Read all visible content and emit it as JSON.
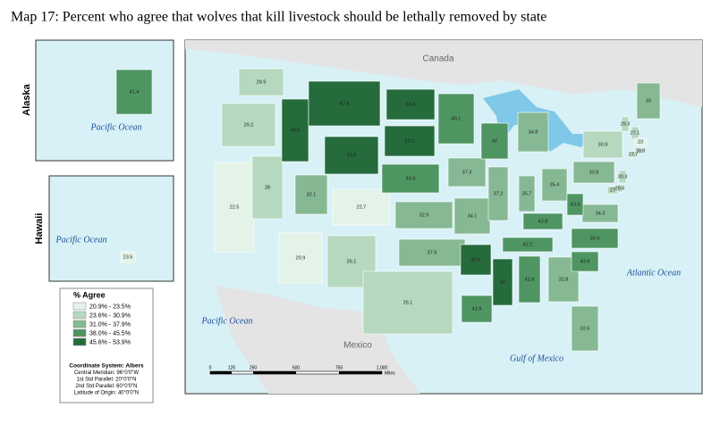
{
  "title": "Map 17: Percent who agree that wolves that kill livestock should be lethally removed by state",
  "insets": {
    "alaska": "Alaska",
    "hawaii": "Hawaii"
  },
  "places": {
    "canada": "Canada",
    "mexico": "Mexico",
    "pacific_main": "Pacific Ocean",
    "pacific_alaska": "Pacific Ocean",
    "pacific_hawaii": "Pacific Ocean",
    "atlantic": "Atlantic Ocean",
    "gulf": "Gulf of Mexico"
  },
  "legend": {
    "title": "% Agree",
    "classes": [
      {
        "value": [
          20.9,
          23.5
        ],
        "label": "20.9% - 23.5%",
        "color": "#e3f3e8"
      },
      {
        "value": [
          23.6,
          30.9
        ],
        "label": "23.6% - 30.9%",
        "color": "#b6d8bf"
      },
      {
        "value": [
          31.0,
          37.9
        ],
        "label": "31.0% - 37.9%",
        "color": "#86b993"
      },
      {
        "value": [
          38.0,
          45.5
        ],
        "label": "38.0% - 45.5%",
        "color": "#4e9562"
      },
      {
        "value": [
          45.6,
          53.9
        ],
        "label": "45.6% - 53.9%",
        "color": "#256b3c"
      }
    ]
  },
  "coordinate_system": [
    "Coordinate System: Albers",
    "Central Meridian: 96°0'0\"W",
    "1st Std Parallel: 20°0'0\"N",
    "2nd Std Parallel: 60°0'0\"N",
    "Latitude of Origin: 40°0'0\"N"
  ],
  "scale": {
    "ticks": [
      "0",
      "125",
      "250",
      "500",
      "750",
      "1,000"
    ],
    "unit": "Miles"
  },
  "state_values": [
    41.4,
    23.5,
    28.9,
    29.2,
    22.5,
    28,
    48.6,
    47.8,
    53.8,
    32.1,
    22.7,
    20.9,
    26.1,
    53.9,
    53.1,
    40.4,
    32.9,
    37.9,
    26.1,
    40.1,
    37.3,
    34.1,
    45.6,
    41.9,
    42,
    37.2,
    34.8,
    35.7,
    35.4,
    43.8,
    42.2,
    52,
    41.8,
    32.8,
    32.6,
    43.9,
    39.4,
    34.3,
    43.4,
    33.8,
    30.9,
    29.3,
    27.1,
    33,
    23,
    30.9,
    27.7,
    30.3,
    27,
    29.6
  ]
}
